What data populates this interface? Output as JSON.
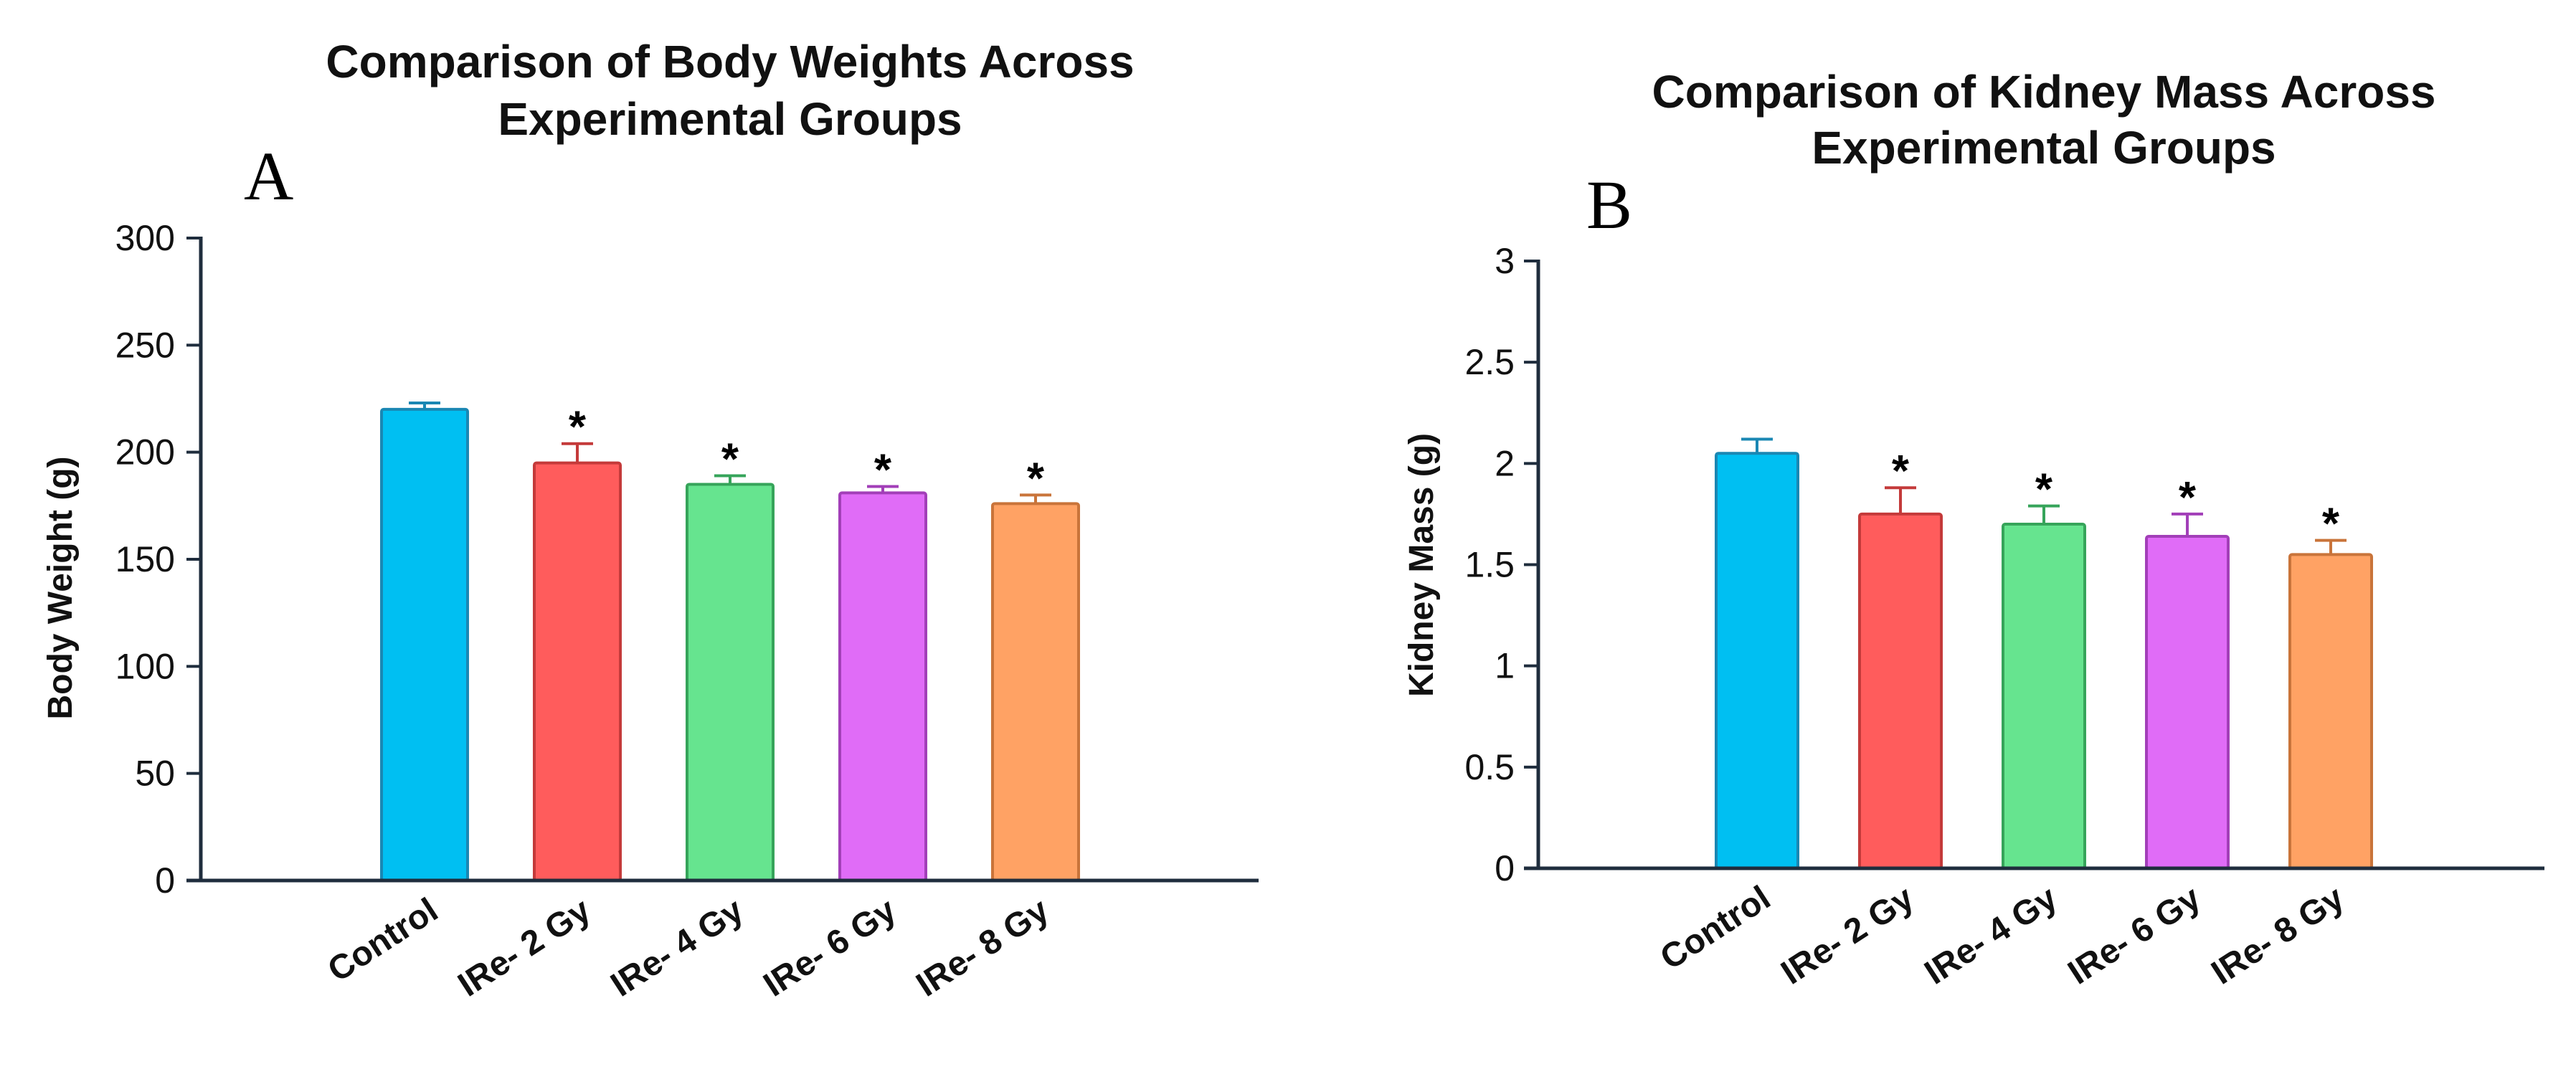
{
  "chart_data": [
    {
      "type": "bar",
      "panel": "A",
      "title": [
        "Comparison of Body Weights Across",
        "Experimental Groups"
      ],
      "xlabel": "",
      "ylabel": "Body Weight (g)",
      "ylim": [
        0,
        300
      ],
      "yticks": [
        0,
        50,
        100,
        150,
        200,
        250,
        300
      ],
      "categories": [
        "Control",
        "IRe- 2 Gy",
        "IRe- 4 Gy",
        "IRe- 6 Gy",
        "IRe- 8 Gy"
      ],
      "values": [
        220,
        195,
        185,
        181,
        176
      ],
      "errors": [
        3,
        9,
        4,
        3,
        4
      ],
      "significance": [
        "",
        "*",
        "*",
        "*",
        "*"
      ],
      "colors": [
        "#00bff2",
        "#ff5c5c",
        "#66e48f",
        "#e06cf7",
        "#ffa264"
      ],
      "edge_colors": [
        "#1a87b3",
        "#c43a3a",
        "#36a45a",
        "#a23fb8",
        "#c9743a"
      ]
    },
    {
      "type": "bar",
      "panel": "B",
      "title": [
        "Comparison of Kidney Mass Across",
        "Experimental Groups"
      ],
      "xlabel": "",
      "ylabel": "Kidney Mass (g)",
      "ylim": [
        0,
        3
      ],
      "yticks": [
        "0",
        "0.5",
        "1",
        "1.5",
        "2",
        "2.5",
        "3"
      ],
      "categories": [
        "Control",
        "IRe- 2 Gy",
        "IRe- 4 Gy",
        "IRe- 6 Gy",
        "IRe- 8 Gy"
      ],
      "values": [
        2.05,
        1.75,
        1.7,
        1.64,
        1.55
      ],
      "errors": [
        0.07,
        0.13,
        0.09,
        0.11,
        0.07
      ],
      "significance": [
        "",
        "*",
        "*",
        "*",
        "*"
      ],
      "colors": [
        "#00bff2",
        "#ff5c5c",
        "#66e48f",
        "#e06cf7",
        "#ffa264"
      ],
      "edge_colors": [
        "#1a87b3",
        "#c43a3a",
        "#36a45a",
        "#a23fb8",
        "#c9743a"
      ]
    }
  ]
}
